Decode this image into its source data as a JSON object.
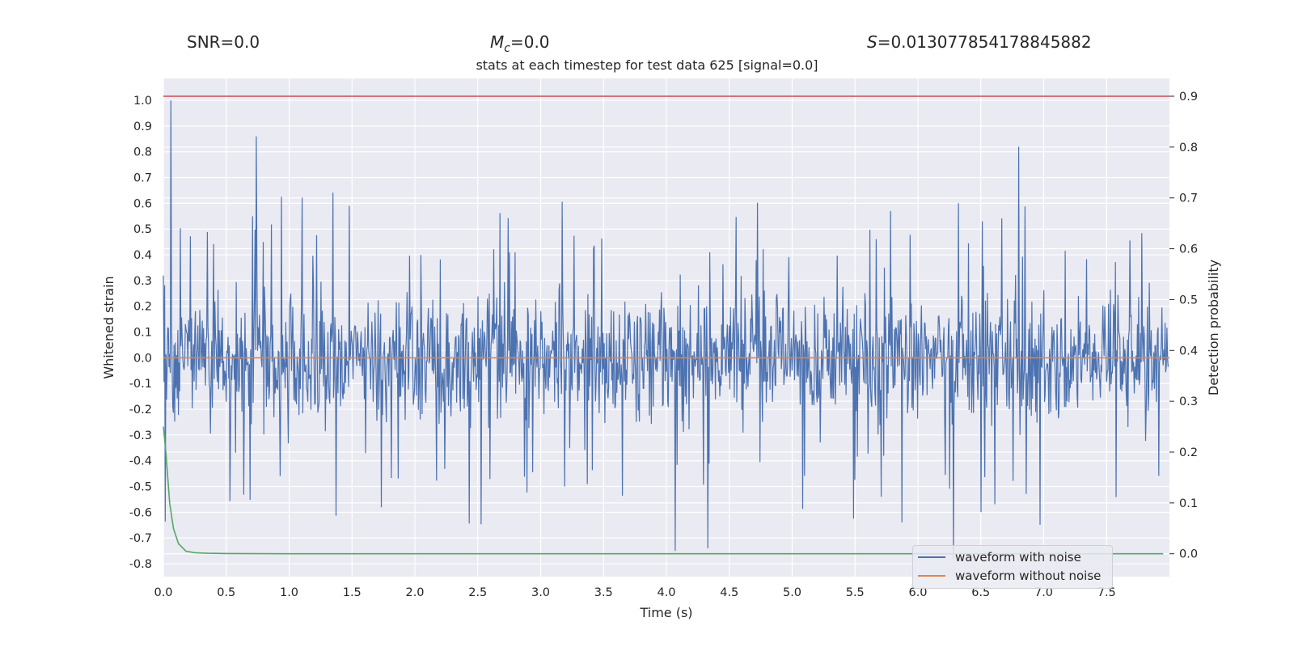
{
  "header": {
    "snr": "SNR=0.0",
    "mc_symbol": "M",
    "mc_sub": "c",
    "mc_value": "=0.0",
    "s_symbol": "S",
    "s_value": "=0.013077854178845882"
  },
  "chart_data": {
    "type": "line",
    "title": "stats at each timestep for test data 625 [signal=0.0]",
    "xlabel": "Time (s)",
    "ylabel_left": "Whitened strain",
    "ylabel_right": "Detection probability",
    "xlim": [
      0.0,
      8.0
    ],
    "ylim_left": [
      -0.85,
      1.085
    ],
    "ylim_right": [
      -0.045,
      0.935
    ],
    "x_ticks": [
      "0.0",
      "0.5",
      "1.0",
      "1.5",
      "2.0",
      "2.5",
      "3.0",
      "3.5",
      "4.0",
      "4.5",
      "5.0",
      "5.5",
      "6.0",
      "6.5",
      "7.0",
      "7.5"
    ],
    "y_left_ticks": [
      "1.0",
      "0.9",
      "0.8",
      "0.7",
      "0.6",
      "0.5",
      "0.4",
      "0.3",
      "0.2",
      "0.1",
      "0.0",
      "-0.1",
      "-0.2",
      "-0.3",
      "-0.4",
      "-0.5",
      "-0.6",
      "-0.7",
      "-0.8"
    ],
    "y_right_ticks": [
      "0.9",
      "0.8",
      "0.7",
      "0.6",
      "0.5",
      "0.4",
      "0.3",
      "0.2",
      "0.1",
      "0.0"
    ],
    "grid": true,
    "legend_position": "lower-right",
    "colors": {
      "waveform_with_noise": "#4c72b0",
      "waveform_without_noise": "#dd8452",
      "detection_probability": "#55a868",
      "threshold": "#c44e52",
      "plot_background": "#eaeaf2",
      "grid": "#ffffff"
    },
    "series": [
      {
        "name": "waveform with noise",
        "axis": "left",
        "description_values": "dense noise, roughly within -0.6..0.6",
        "peaks": [
          {
            "x": 0.06,
            "y": 1.0
          },
          {
            "x": 0.74,
            "y": 0.86
          },
          {
            "x": 6.8,
            "y": 0.82
          },
          {
            "x": 4.07,
            "y": -0.75
          },
          {
            "x": 4.33,
            "y": -0.74
          },
          {
            "x": 6.28,
            "y": -0.78
          }
        ]
      },
      {
        "name": "waveform without noise",
        "axis": "left",
        "x": [
          0.0,
          8.0
        ],
        "y": [
          0.0,
          0.0
        ]
      },
      {
        "axis": "right",
        "x": [
          0.0,
          0.02,
          0.05,
          0.08,
          0.12,
          0.18,
          0.25,
          0.35,
          0.5,
          1.0,
          2.0,
          4.0,
          6.0,
          7.95
        ],
        "y": [
          0.25,
          0.2,
          0.1,
          0.05,
          0.02,
          0.005,
          0.002,
          0.001,
          0.0005,
          0.0,
          0.0,
          0.0,
          0.0,
          0.0
        ]
      },
      {
        "axis": "right",
        "x": [
          0.0,
          8.0
        ],
        "y": [
          0.9,
          0.9
        ]
      }
    ]
  }
}
